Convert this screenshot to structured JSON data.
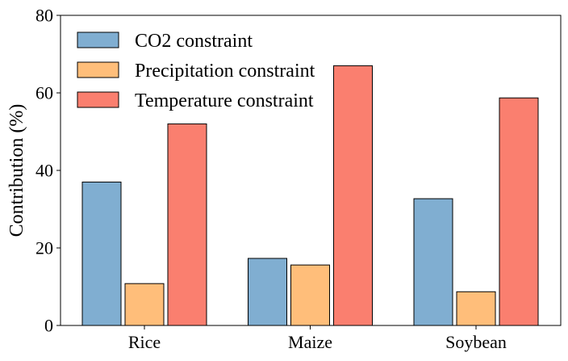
{
  "chart_data": {
    "type": "bar",
    "title": "",
    "xlabel": "",
    "ylabel": "Contribution (%)",
    "ylim": [
      0,
      80
    ],
    "yticks": [
      0,
      20,
      40,
      60,
      80
    ],
    "grid": false,
    "legend_position": "top-left",
    "categories": [
      "Rice",
      "Maize",
      "Soybean"
    ],
    "series": [
      {
        "name": "CO2 constraint",
        "color": "#80AED1",
        "values": [
          37,
          17.3,
          32.7
        ]
      },
      {
        "name": "Precipitation constraint",
        "color": "#FFBE7A",
        "values": [
          10.8,
          15.6,
          8.7
        ]
      },
      {
        "name": "Temperature constraint",
        "color": "#FA7F6F",
        "values": [
          52,
          67,
          58.7
        ]
      }
    ]
  }
}
